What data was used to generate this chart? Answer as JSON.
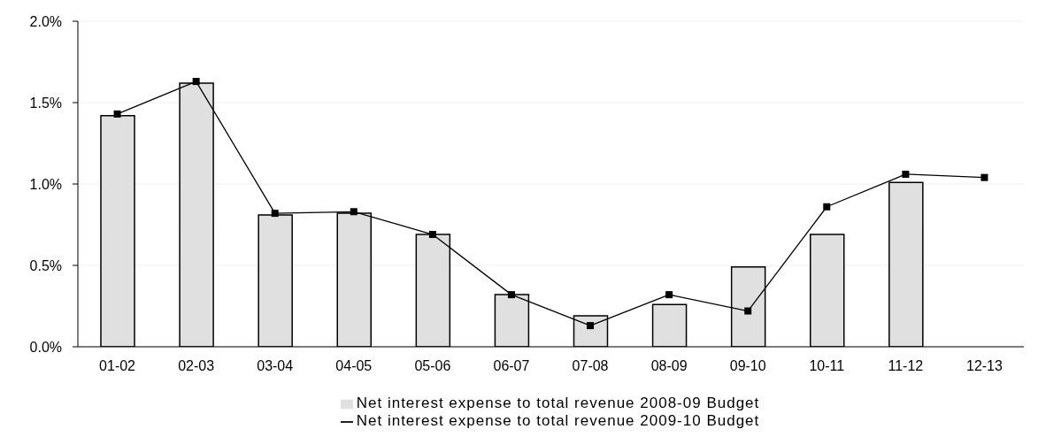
{
  "chart_data": {
    "type": "bar",
    "categories": [
      "01-02",
      "02-03",
      "03-04",
      "04-05",
      "05-06",
      "06-07",
      "07-08",
      "08-09",
      "09-10",
      "10-11",
      "11-12",
      "12-13"
    ],
    "series": [
      {
        "name": "Net interest expense to total revenue 2008-09 Budget",
        "color": "#e0e0e0",
        "values": [
          1.42,
          1.62,
          0.81,
          0.82,
          0.69,
          0.32,
          0.19,
          0.26,
          0.49,
          0.69,
          1.01,
          null
        ]
      },
      {
        "name": "Net interest expense to total revenue 2009-10 Budget",
        "type": "line",
        "color": "#000000",
        "marker": "square",
        "values": [
          1.43,
          1.63,
          0.82,
          0.83,
          0.69,
          0.32,
          0.13,
          0.32,
          0.22,
          0.86,
          1.06,
          1.04
        ]
      }
    ],
    "ylim": [
      0,
      2
    ],
    "yticks": [
      {
        "value": 0,
        "label": "0.0%"
      },
      {
        "value": 0.5,
        "label": "0.5%"
      },
      {
        "value": 1,
        "label": "1.0%"
      },
      {
        "value": 1.5,
        "label": "1.5%"
      },
      {
        "value": 2,
        "label": "2.0%"
      }
    ],
    "grid": "y",
    "legend": "bottom"
  }
}
